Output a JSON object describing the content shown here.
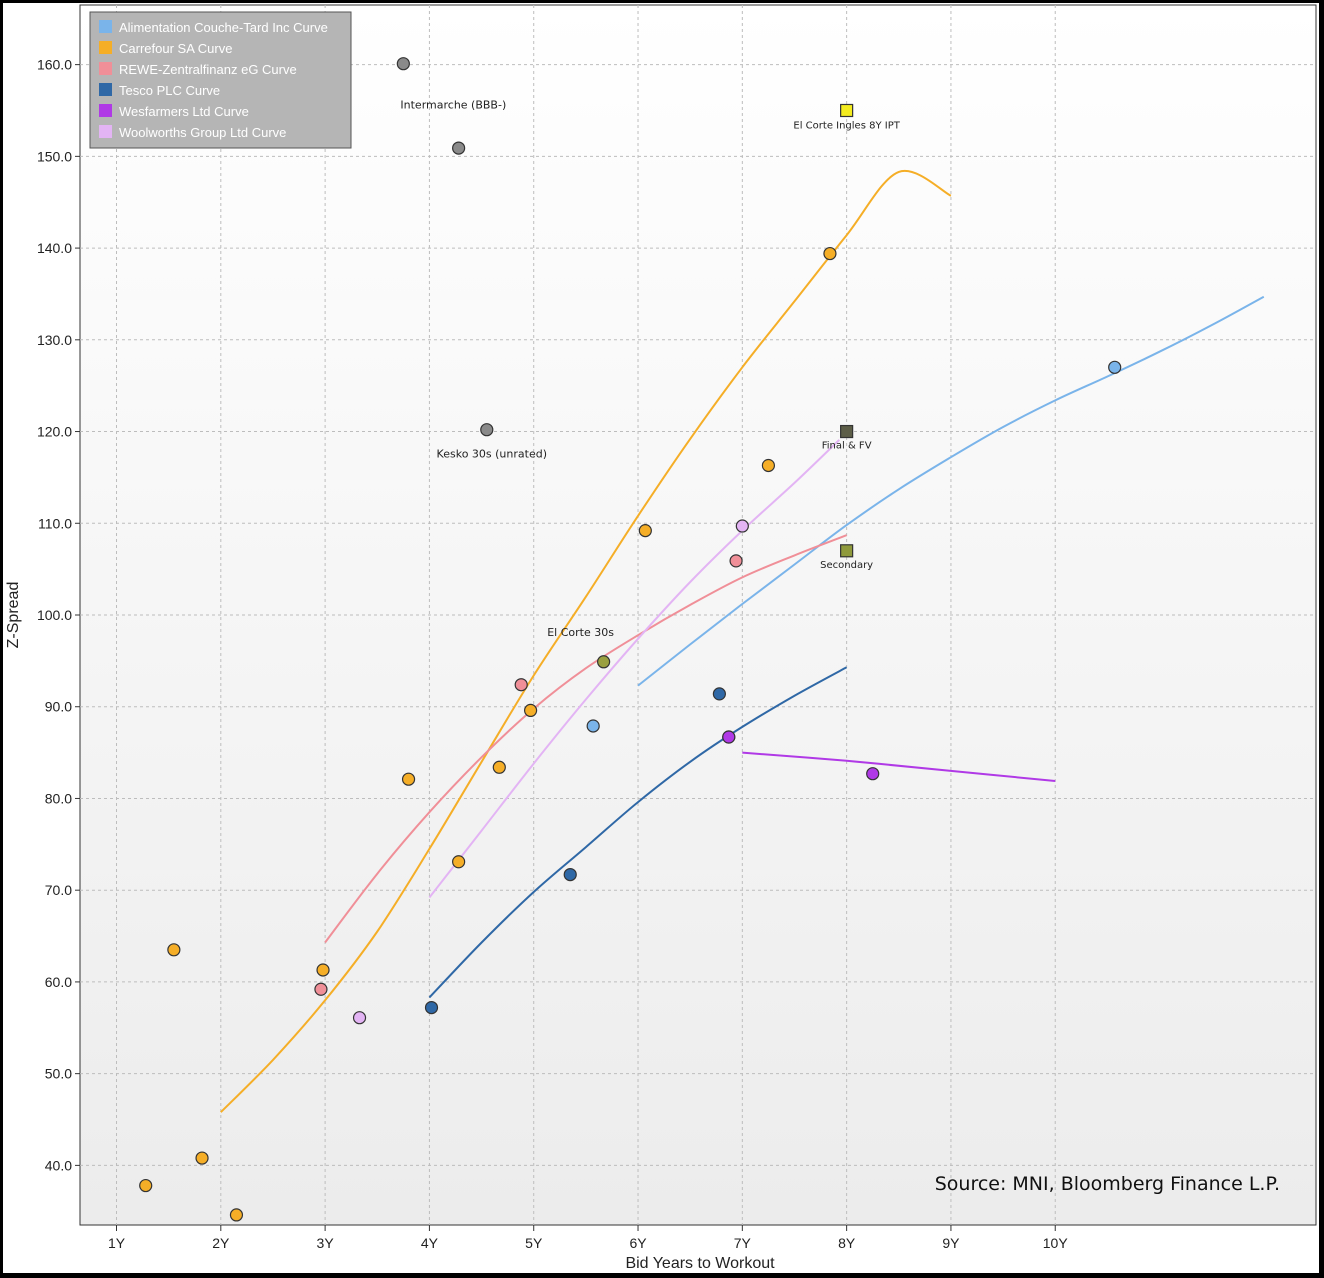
{
  "chart_data": {
    "type": "scatter",
    "xlabel": "Bid Years to Workout",
    "ylabel": "Z-Spread",
    "xlim": [
      0.65,
      12.5
    ],
    "ylim": [
      33.5,
      166.5
    ],
    "x_ticks": [
      {
        "value": 1,
        "label": "1Y"
      },
      {
        "value": 2,
        "label": "2Y"
      },
      {
        "value": 3,
        "label": "3Y"
      },
      {
        "value": 4,
        "label": "4Y"
      },
      {
        "value": 5,
        "label": "5Y"
      },
      {
        "value": 6,
        "label": "6Y"
      },
      {
        "value": 7,
        "label": "7Y"
      },
      {
        "value": 8,
        "label": "8Y"
      },
      {
        "value": 9,
        "label": "9Y"
      },
      {
        "value": 10,
        "label": "10Y"
      }
    ],
    "y_ticks": [
      {
        "value": 40,
        "label": "40.0"
      },
      {
        "value": 50,
        "label": "50.0"
      },
      {
        "value": 60,
        "label": "60.0"
      },
      {
        "value": 70,
        "label": "70.0"
      },
      {
        "value": 80,
        "label": "80.0"
      },
      {
        "value": 90,
        "label": "90.0"
      },
      {
        "value": 100,
        "label": "100.0"
      },
      {
        "value": 110,
        "label": "110.0"
      },
      {
        "value": 120,
        "label": "120.0"
      },
      {
        "value": 130,
        "label": "130.0"
      },
      {
        "value": 140,
        "label": "140.0"
      },
      {
        "value": 150,
        "label": "150.0"
      },
      {
        "value": 160,
        "label": "160.0"
      }
    ],
    "grid": true,
    "legend_position": "top-left",
    "series": [
      {
        "name": "Alimentation Couche-Tard Inc Curve",
        "color": "#7ab4ea",
        "curve": [
          [
            6.0,
            92.3
          ],
          [
            6.5,
            96.8
          ],
          [
            7.0,
            101.2
          ],
          [
            7.5,
            105.5
          ],
          [
            8.0,
            109.8
          ],
          [
            8.5,
            113.7
          ],
          [
            9.0,
            117.2
          ],
          [
            9.5,
            120.5
          ],
          [
            10.0,
            123.4
          ],
          [
            10.5,
            126.0
          ],
          [
            11.0,
            128.7
          ],
          [
            11.5,
            131.6
          ],
          [
            12.0,
            134.7
          ]
        ],
        "points": [
          [
            5.57,
            87.9
          ],
          [
            10.57,
            127.0
          ]
        ]
      },
      {
        "name": "Carrefour SA Curve",
        "color": "#f5ae27",
        "curve": [
          [
            2.0,
            45.8
          ],
          [
            2.5,
            51.5
          ],
          [
            3.0,
            58.0
          ],
          [
            3.5,
            65.5
          ],
          [
            4.0,
            74.5
          ],
          [
            4.5,
            84.0
          ],
          [
            5.0,
            93.4
          ],
          [
            5.5,
            102.0
          ],
          [
            6.0,
            110.8
          ],
          [
            6.5,
            119.2
          ],
          [
            7.0,
            127.0
          ],
          [
            7.5,
            134.2
          ],
          [
            8.0,
            141.4
          ],
          [
            8.5,
            148.3
          ],
          [
            9.0,
            145.7
          ]
        ],
        "points": [
          [
            1.28,
            37.8
          ],
          [
            1.55,
            63.5
          ],
          [
            1.82,
            40.8
          ],
          [
            2.15,
            34.6
          ],
          [
            2.98,
            61.3
          ],
          [
            3.8,
            82.1
          ],
          [
            4.28,
            73.1
          ],
          [
            4.67,
            83.4
          ],
          [
            4.97,
            89.6
          ],
          [
            6.07,
            109.2
          ],
          [
            7.25,
            116.3
          ],
          [
            7.84,
            139.4
          ]
        ]
      },
      {
        "name": "REWE-Zentralfinanz eG Curve",
        "color": "#f08f98",
        "curve": [
          [
            3.0,
            64.3
          ],
          [
            3.5,
            71.8
          ],
          [
            4.0,
            78.5
          ],
          [
            4.5,
            84.5
          ],
          [
            5.0,
            89.8
          ],
          [
            5.5,
            94.2
          ],
          [
            6.0,
            97.8
          ],
          [
            6.5,
            101.1
          ],
          [
            7.0,
            104.1
          ],
          [
            7.5,
            106.5
          ],
          [
            8.0,
            108.7
          ]
        ],
        "points": [
          [
            2.96,
            59.2
          ],
          [
            4.88,
            92.4
          ],
          [
            6.94,
            105.9
          ]
        ]
      },
      {
        "name": "Tesco PLC Curve",
        "color": "#2f68a6",
        "curve": [
          [
            4.0,
            58.3
          ],
          [
            4.5,
            64.3
          ],
          [
            5.0,
            69.8
          ],
          [
            5.5,
            74.7
          ],
          [
            6.0,
            79.6
          ],
          [
            6.5,
            84.0
          ],
          [
            7.0,
            87.8
          ],
          [
            7.5,
            91.2
          ],
          [
            8.0,
            94.3
          ]
        ],
        "points": [
          [
            4.02,
            57.2
          ],
          [
            5.35,
            71.7
          ],
          [
            6.78,
            91.4
          ],
          [
            6.87,
            86.7
          ]
        ]
      },
      {
        "name": "Wesfarmers Ltd Curve",
        "color": "#b039e6",
        "curve": [
          [
            7.0,
            85.0
          ],
          [
            8.0,
            84.1
          ],
          [
            9.0,
            83.0
          ],
          [
            10.0,
            81.9
          ]
        ],
        "points": [
          [
            6.87,
            86.7
          ],
          [
            8.25,
            82.7
          ]
        ]
      },
      {
        "name": "Woolworths Group Ltd Curve",
        "color": "#e3b4f4",
        "curve": [
          [
            4.0,
            69.2
          ],
          [
            4.5,
            76.5
          ],
          [
            5.0,
            83.8
          ],
          [
            5.5,
            90.8
          ],
          [
            6.0,
            97.4
          ],
          [
            6.5,
            103.6
          ],
          [
            7.0,
            109.2
          ],
          [
            7.5,
            114.4
          ],
          [
            7.93,
            119.1
          ]
        ],
        "points": [
          [
            3.33,
            56.1
          ],
          [
            7.0,
            109.7
          ]
        ]
      }
    ],
    "other_points": [
      {
        "label": "Intermarche (BBB-)",
        "x": 3.75,
        "y": 160.1,
        "color": "#8a8a8a",
        "shape": "circle"
      },
      {
        "label": "",
        "x": 4.28,
        "y": 150.9,
        "color": "#8a8a8a",
        "shape": "circle"
      },
      {
        "label": "Kesko 30s (unrated)",
        "x": 4.55,
        "y": 120.2,
        "color": "#8a8a8a",
        "shape": "circle"
      },
      {
        "label": "El Corte 30s",
        "x": 5.67,
        "y": 94.9,
        "color": "#9aa03f",
        "shape": "circle"
      },
      {
        "label": "El Corte Ingles 8Y IPT",
        "x": 8.0,
        "y": 155.0,
        "color": "#f4ec1e",
        "shape": "square"
      },
      {
        "label": "Final & FV",
        "x": 8.0,
        "y": 120.0,
        "color": "#5d5e48",
        "shape": "square"
      },
      {
        "label": "Secondary",
        "x": 8.0,
        "y": 107.0,
        "color": "#8f9a3c",
        "shape": "square"
      }
    ],
    "source": "Source: MNI, Bloomberg Finance L.P."
  }
}
